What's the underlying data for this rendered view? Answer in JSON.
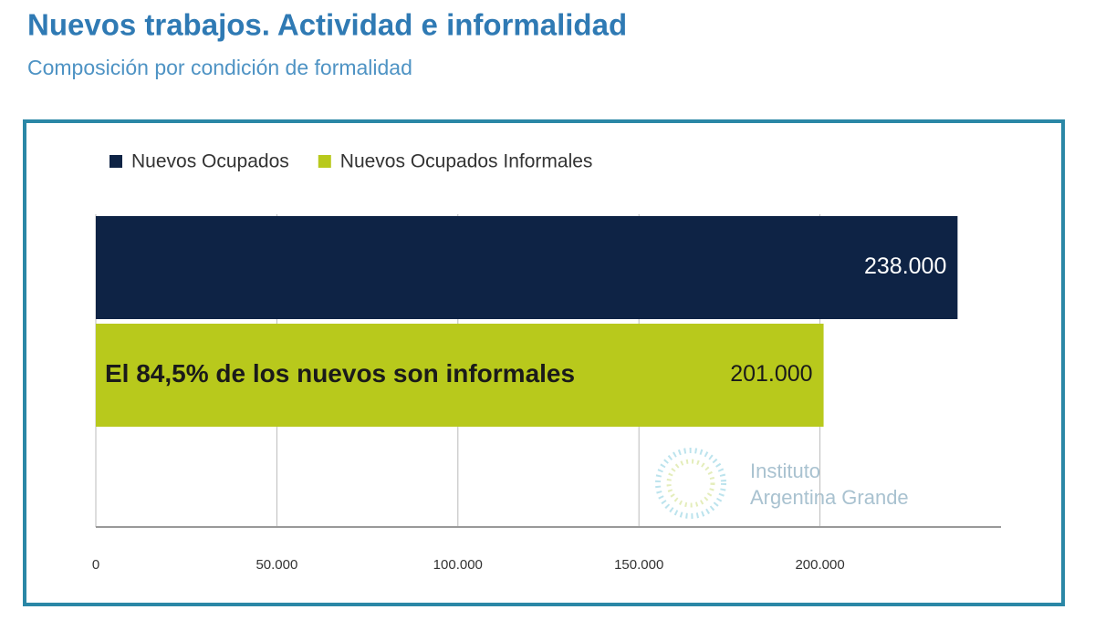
{
  "chart_data": {
    "type": "bar",
    "orientation": "horizontal",
    "title": "Nuevos trabajos. Actividad e informalidad",
    "subtitle": "Composición por condición de formalidad",
    "categories": [
      null
    ],
    "series": [
      {
        "name": "Nuevos Ocupados",
        "color": "#0e2345",
        "values": [
          238000
        ],
        "value_labels": [
          "238.000"
        ]
      },
      {
        "name": "Nuevos Ocupados Informales",
        "color": "#b8c91c",
        "values": [
          201000
        ],
        "value_labels": [
          "201.000"
        ]
      }
    ],
    "annotation": "El 84,5% de los nuevos son informales",
    "watermark": [
      "Instituto",
      "Argentina Grande"
    ],
    "xlim": [
      0,
      250000
    ],
    "xticks": [
      0,
      {
        "value": 50000,
        "label": "50.000"
      },
      {
        "value": 100000,
        "label": "100.000"
      },
      {
        "value": 150000,
        "label": "150.000"
      },
      {
        "value": 200000,
        "label": "200.000"
      }
    ],
    "grid": true,
    "legend": "top"
  }
}
